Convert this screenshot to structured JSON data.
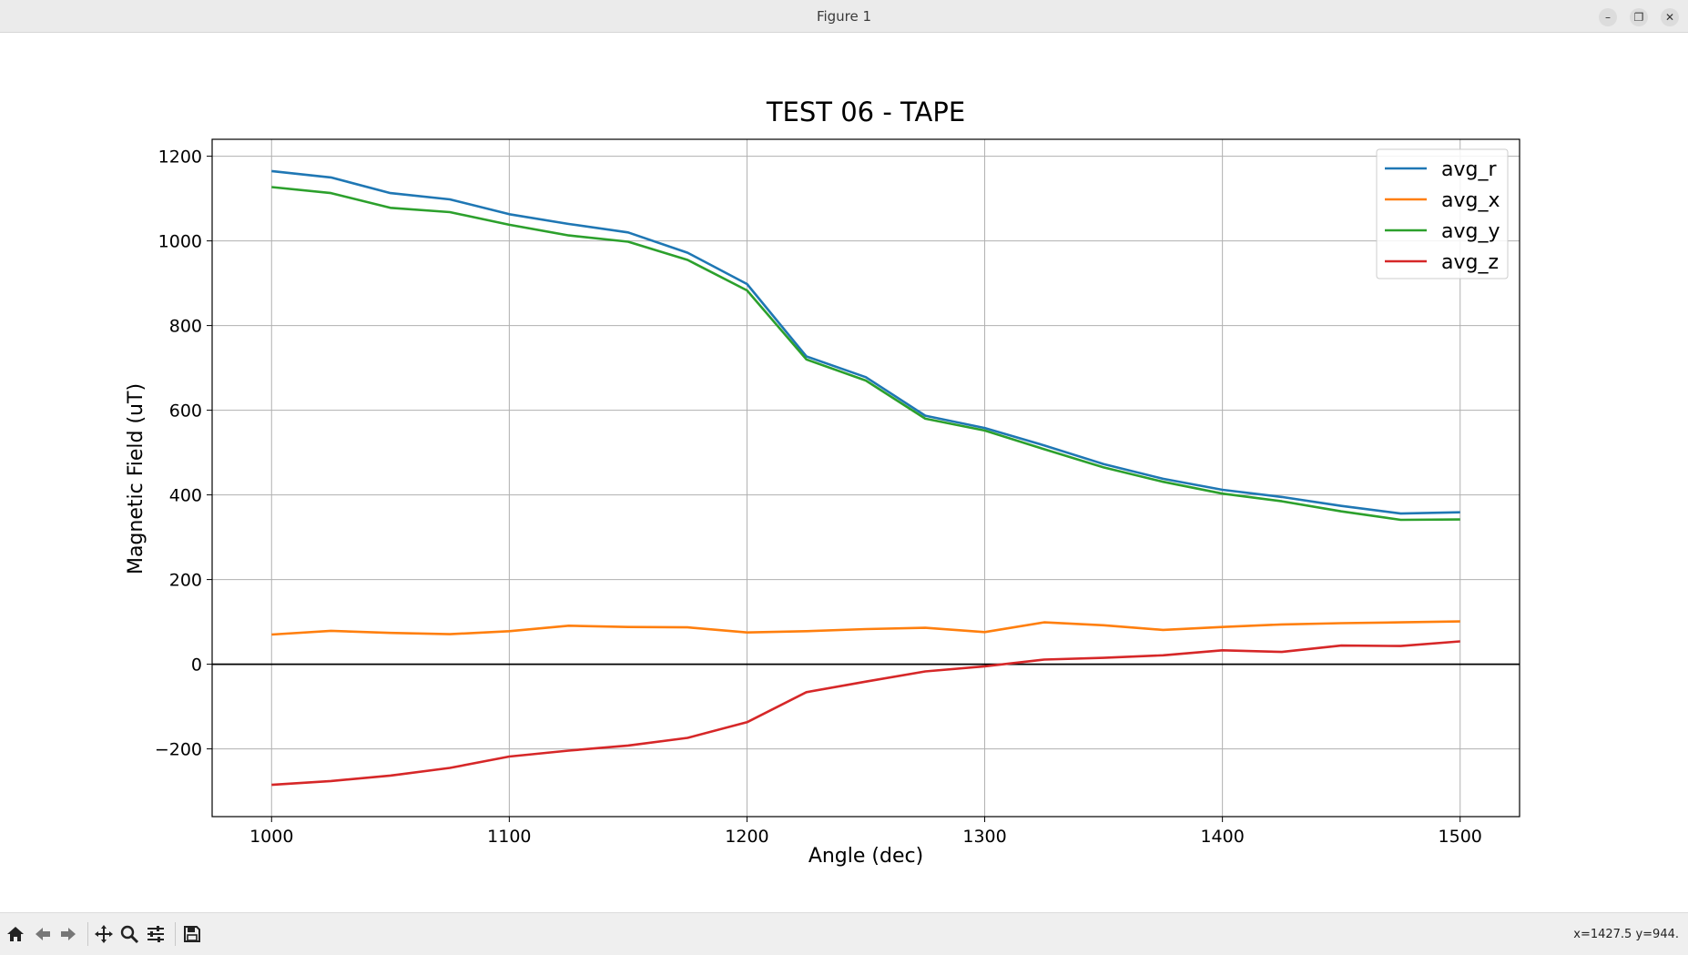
{
  "window": {
    "title": "Figure 1"
  },
  "toolbar": {
    "buttons": [
      "home-icon",
      "back-arrow-icon",
      "forward-arrow-icon",
      "pan-icon",
      "zoom-icon",
      "configure-icon",
      "save-icon"
    ],
    "coords": "x=1427.5 y=944."
  },
  "chart_data": {
    "type": "line",
    "title": "TEST 06 - TAPE",
    "xlabel": "Angle (dec)",
    "ylabel": "Magnetic Field (uT)",
    "xlim": [
      975,
      1525
    ],
    "ylim": [
      -360,
      1240
    ],
    "xticks": [
      1000,
      1100,
      1200,
      1300,
      1400,
      1500
    ],
    "yticks": [
      -200,
      0,
      200,
      400,
      600,
      800,
      1000,
      1200
    ],
    "xtick_labels": [
      "1000",
      "1100",
      "1200",
      "1300",
      "1400",
      "1500"
    ],
    "ytick_labels": [
      "−200",
      "0",
      "200",
      "400",
      "600",
      "800",
      "1000",
      "1200"
    ],
    "grid": true,
    "zero_line": true,
    "legend_position": "upper-right",
    "x": [
      1000,
      1025,
      1050,
      1075,
      1100,
      1125,
      1150,
      1175,
      1200,
      1225,
      1250,
      1275,
      1300,
      1325,
      1350,
      1375,
      1400,
      1425,
      1450,
      1475,
      1500
    ],
    "series": [
      {
        "name": "avg_r",
        "color": "#1f77b4",
        "values": [
          1165,
          1150,
          1113,
          1098,
          1063,
          1040,
          1020,
          972,
          898,
          727,
          678,
          587,
          558,
          517,
          473,
          438,
          412,
          395,
          374,
          356,
          359
        ]
      },
      {
        "name": "avg_x",
        "color": "#ff7f0e",
        "values": [
          70,
          79,
          74,
          71,
          78,
          91,
          88,
          87,
          75,
          78,
          83,
          86,
          76,
          99,
          92,
          81,
          88,
          94,
          97,
          99,
          101
        ]
      },
      {
        "name": "avg_y",
        "color": "#2ca02c",
        "values": [
          1127,
          1113,
          1078,
          1068,
          1038,
          1013,
          998,
          955,
          883,
          720,
          670,
          580,
          552,
          508,
          465,
          431,
          403,
          385,
          361,
          341,
          342
        ]
      },
      {
        "name": "avg_z",
        "color": "#d62728",
        "values": [
          -285,
          -276,
          -263,
          -245,
          -218,
          -204,
          -192,
          -174,
          -137,
          -66,
          -41,
          -17,
          -5,
          11,
          15,
          21,
          33,
          29,
          44,
          43,
          54
        ]
      }
    ]
  }
}
